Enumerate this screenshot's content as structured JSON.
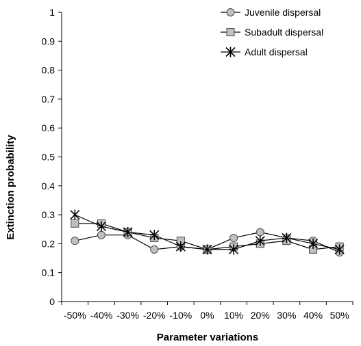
{
  "chart_data": {
    "type": "line",
    "title": "",
    "xlabel": "Parameter variations",
    "ylabel": "Extinction probability",
    "categories": [
      "-50%",
      "-40%",
      "-30%",
      "-20%",
      "-10%",
      "0%",
      "10%",
      "20%",
      "30%",
      "40%",
      "50%"
    ],
    "yticks": [
      "0",
      "0.1",
      "0.2",
      "0.3",
      "0.4",
      "0.5",
      "0.6",
      "0.7",
      "0.8",
      "0.9",
      "1"
    ],
    "ylim": [
      0,
      1
    ],
    "grid": false,
    "legend_position": "top-right",
    "series": [
      {
        "name": "Juvenile dispersal",
        "marker": "circle",
        "values": [
          0.21,
          0.23,
          0.23,
          0.18,
          0.19,
          0.18,
          0.22,
          0.24,
          0.22,
          0.21,
          0.17
        ]
      },
      {
        "name": "Subadult dispersal",
        "marker": "square",
        "values": [
          0.27,
          0.27,
          0.24,
          0.22,
          0.21,
          0.18,
          0.19,
          0.2,
          0.21,
          0.18,
          0.19
        ]
      },
      {
        "name": "Adult dispersal",
        "marker": "asterisk",
        "values": [
          0.3,
          0.26,
          0.24,
          0.23,
          0.19,
          0.18,
          0.18,
          0.21,
          0.22,
          0.2,
          0.18
        ]
      }
    ],
    "colors": {
      "line": "#000000",
      "marker_fill": "#c0c0c0",
      "marker_stroke": "#4a4a4a"
    }
  }
}
